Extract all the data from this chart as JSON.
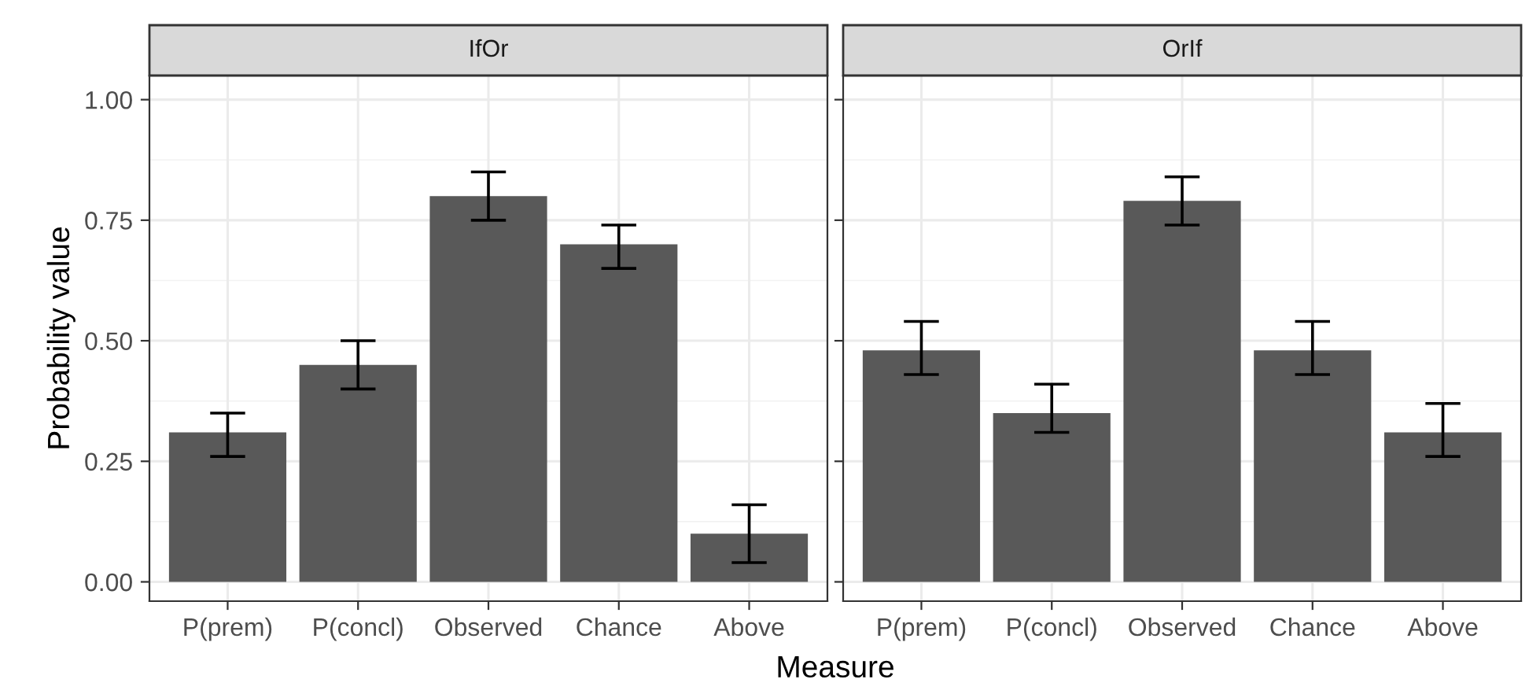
{
  "chart_data": [
    {
      "type": "bar",
      "title": "IfOr",
      "ylabel": "Probability value",
      "xlabel": "Measure",
      "categories": [
        "P(prem)",
        "P(concl)",
        "Observed",
        "Chance",
        "Above"
      ],
      "values": [
        0.31,
        0.45,
        0.8,
        0.7,
        0.1
      ],
      "errors": [
        [
          0.26,
          0.35
        ],
        [
          0.4,
          0.5
        ],
        [
          0.75,
          0.85
        ],
        [
          0.65,
          0.74
        ],
        [
          0.04,
          0.16
        ]
      ],
      "color": "#595959",
      "ylim": [
        -0.04,
        1.05
      ],
      "yticks": [
        {
          "value": 0,
          "label": "0.00"
        },
        {
          "value": 0.25,
          "label": "0.25"
        },
        {
          "value": 0.5,
          "label": "0.50"
        },
        {
          "value": 0.75,
          "label": "0.75"
        },
        {
          "value": 1,
          "label": "1.00"
        }
      ],
      "grid": true
    },
    {
      "type": "bar",
      "title": "OrIf",
      "categories": [
        "P(prem)",
        "P(concl)",
        "Observed",
        "Chance",
        "Above"
      ],
      "values": [
        0.48,
        0.35,
        0.79,
        0.48,
        0.31
      ],
      "errors": [
        [
          0.43,
          0.54
        ],
        [
          0.31,
          0.41
        ],
        [
          0.74,
          0.84
        ],
        [
          0.43,
          0.54
        ],
        [
          0.26,
          0.37
        ]
      ],
      "color": "#595959",
      "ylim": [
        -0.04,
        1.05
      ],
      "yticks": [
        {
          "value": 0,
          "label": null
        },
        {
          "value": 0.25,
          "label": null
        },
        {
          "value": 0.5,
          "label": null
        },
        {
          "value": 0.75,
          "label": null
        },
        {
          "value": 1,
          "label": null
        }
      ],
      "grid": true,
      "tick_labels": "x"
    }
  ]
}
